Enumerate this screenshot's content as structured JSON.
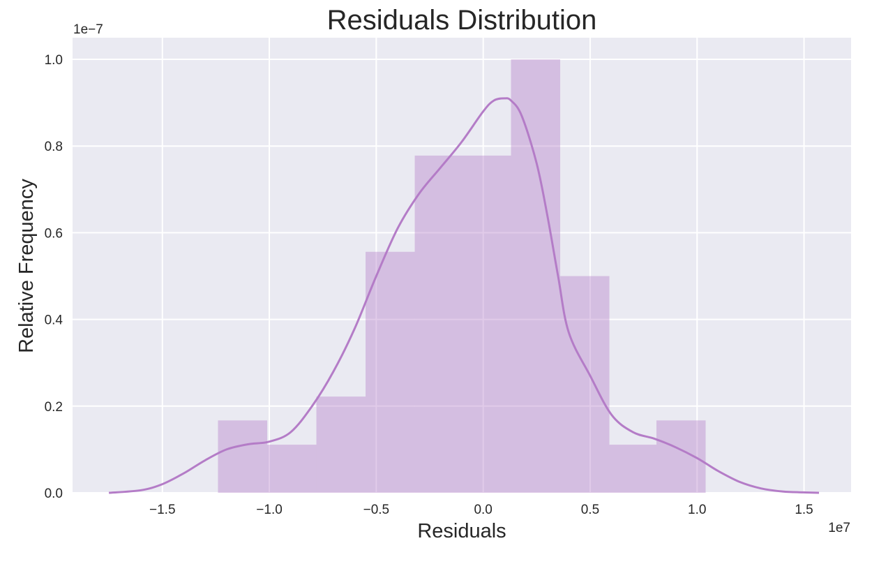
{
  "chart_data": {
    "type": "histogram",
    "title": "Residuals Distribution",
    "xlabel": "Residuals",
    "ylabel": "Relative Frequency",
    "x_offset_text": "1e7",
    "y_offset_text": "1e−7",
    "x_scale": 10000000,
    "y_scale": 1e-07,
    "xlim": [
      -1.92,
      1.72
    ],
    "ylim": [
      0,
      1.05
    ],
    "x_ticks": [
      -1.5,
      -1.0,
      -0.5,
      0.0,
      0.5,
      1.0,
      1.5
    ],
    "x_tick_labels": [
      "−1.5",
      "−1.0",
      "−0.5",
      "0.0",
      "0.5",
      "1.0",
      "1.5"
    ],
    "y_ticks": [
      0.0,
      0.2,
      0.4,
      0.6,
      0.8,
      1.0
    ],
    "y_tick_labels": [
      "0.0",
      "0.2",
      "0.4",
      "0.6",
      "0.8",
      "1.0"
    ],
    "grid": true,
    "colors": {
      "background": "#eaeaf2",
      "grid": "#ffffff",
      "bar_fill": "#b47cc7",
      "bar_alpha": 0.4,
      "kde_line": "#b47cc7"
    },
    "bins": [
      {
        "x0": -1.24,
        "x1": -1.01,
        "density": 0.167
      },
      {
        "x0": -1.01,
        "x1": -0.78,
        "density": 0.111
      },
      {
        "x0": -0.78,
        "x1": -0.55,
        "density": 0.222
      },
      {
        "x0": -0.55,
        "x1": -0.32,
        "density": 0.556
      },
      {
        "x0": -0.32,
        "x1": -0.1,
        "density": 0.778
      },
      {
        "x0": -0.1,
        "x1": 0.13,
        "density": 0.778
      },
      {
        "x0": 0.13,
        "x1": 0.36,
        "density": 1.0
      },
      {
        "x0": 0.36,
        "x1": 0.59,
        "density": 0.5
      },
      {
        "x0": 0.59,
        "x1": 0.81,
        "density": 0.111
      },
      {
        "x0": 0.81,
        "x1": 1.04,
        "density": 0.167
      }
    ],
    "kde": {
      "x": [
        -1.75,
        -1.6,
        -1.5,
        -1.4,
        -1.3,
        -1.2,
        -1.1,
        -1.0,
        -0.9,
        -0.8,
        -0.7,
        -0.6,
        -0.5,
        -0.4,
        -0.3,
        -0.2,
        -0.1,
        0.0,
        0.05,
        0.1,
        0.13,
        0.18,
        0.25,
        0.3,
        0.35,
        0.4,
        0.5,
        0.6,
        0.7,
        0.8,
        0.9,
        1.0,
        1.1,
        1.2,
        1.3,
        1.4,
        1.5,
        1.57
      ],
      "y": [
        0.0,
        0.006,
        0.02,
        0.045,
        0.075,
        0.1,
        0.112,
        0.118,
        0.14,
        0.2,
        0.28,
        0.38,
        0.5,
        0.61,
        0.69,
        0.75,
        0.81,
        0.88,
        0.905,
        0.91,
        0.905,
        0.87,
        0.76,
        0.64,
        0.5,
        0.37,
        0.27,
        0.18,
        0.14,
        0.125,
        0.105,
        0.08,
        0.05,
        0.025,
        0.01,
        0.003,
        0.001,
        0.0
      ]
    }
  }
}
